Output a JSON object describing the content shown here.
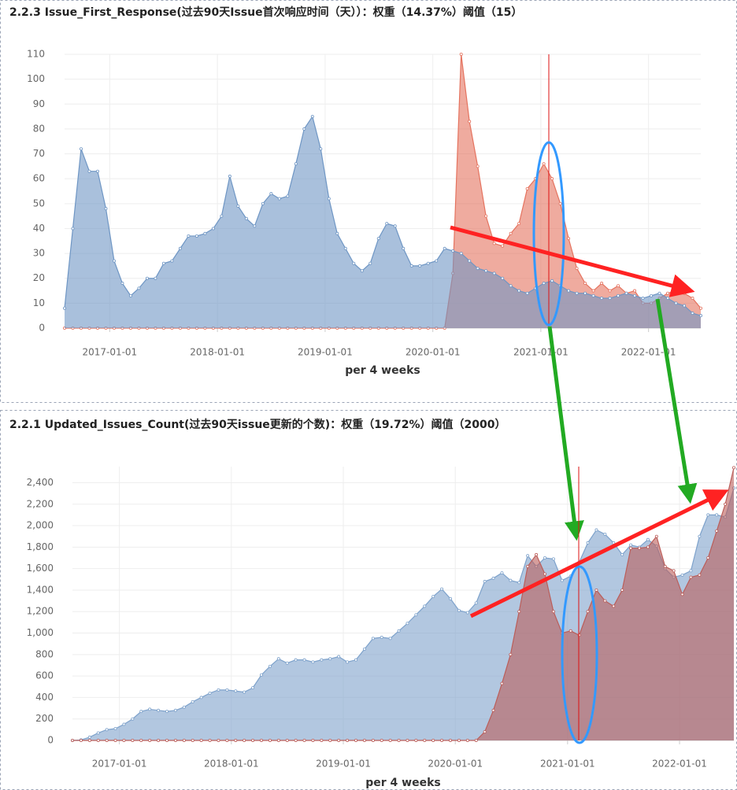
{
  "chart_data": [
    {
      "type": "area",
      "title": "2.2.3 Issue_First_Response(过去90天Issue首次响应时间（天））：权重（14.37%）阈值（15）",
      "x_label": "per 4 weeks",
      "x": [
        "2016-08-01",
        "2016-08-29",
        "2016-09-26",
        "2016-10-24",
        "2016-11-21",
        "2016-12-19",
        "2017-01-16",
        "2017-02-13",
        "2017-03-13",
        "2017-04-10",
        "2017-05-08",
        "2017-06-05",
        "2017-07-03",
        "2017-07-31",
        "2017-08-28",
        "2017-09-25",
        "2017-10-23",
        "2017-11-20",
        "2017-12-18",
        "2018-01-15",
        "2018-02-12",
        "2018-03-12",
        "2018-04-09",
        "2018-05-07",
        "2018-06-04",
        "2018-07-02",
        "2018-07-30",
        "2018-08-27",
        "2018-09-24",
        "2018-10-22",
        "2018-11-19",
        "2018-12-17",
        "2019-01-14",
        "2019-02-11",
        "2019-03-11",
        "2019-04-08",
        "2019-05-06",
        "2019-06-03",
        "2019-07-01",
        "2019-07-29",
        "2019-08-26",
        "2019-09-23",
        "2019-10-21",
        "2019-11-18",
        "2019-12-16",
        "2020-01-13",
        "2020-02-10",
        "2020-03-09",
        "2020-04-06",
        "2020-05-04",
        "2020-06-01",
        "2020-06-29",
        "2020-07-27",
        "2020-08-24",
        "2020-09-21",
        "2020-10-19",
        "2020-11-16",
        "2020-12-14",
        "2021-01-11",
        "2021-02-08",
        "2021-03-08",
        "2021-04-05",
        "2021-05-03",
        "2021-05-31",
        "2021-06-28",
        "2021-07-26",
        "2021-08-23",
        "2021-09-20",
        "2021-10-18",
        "2021-11-15",
        "2021-12-13",
        "2022-01-10",
        "2022-02-07",
        "2022-03-07",
        "2022-04-04",
        "2022-05-02",
        "2022-05-30",
        "2022-06-27"
      ],
      "xlim": [
        "2016-08-01",
        "2022-06-27"
      ],
      "xticks": [
        "2017-01-01",
        "2018-01-01",
        "2019-01-01",
        "2020-01-01",
        "2021-01-01",
        "2022-01-01"
      ],
      "ylim": [
        0,
        110
      ],
      "yticks": [
        0,
        10,
        20,
        30,
        40,
        50,
        60,
        70,
        80,
        90,
        100,
        110
      ],
      "grid": true,
      "series": [
        {
          "color": "#e5735f",
          "values": [
            0,
            0,
            0,
            0,
            0,
            0,
            0,
            0,
            0,
            0,
            0,
            0,
            0,
            0,
            0,
            0,
            0,
            0,
            0,
            0,
            0,
            0,
            0,
            0,
            0,
            0,
            0,
            0,
            0,
            0,
            0,
            0,
            0,
            0,
            0,
            0,
            0,
            0,
            0,
            0,
            0,
            0,
            0,
            0,
            0,
            0,
            0,
            22,
            110,
            83,
            65,
            45,
            34,
            33,
            38,
            42,
            56,
            60,
            66,
            60,
            50,
            36,
            24,
            18,
            15,
            18,
            15,
            17,
            14,
            15,
            10,
            10,
            12,
            14,
            15,
            14,
            12,
            8
          ]
        },
        {
          "color": "#6f96c4",
          "values": [
            8,
            40,
            72,
            63,
            63,
            48,
            27,
            18,
            13,
            16,
            20,
            20,
            26,
            27,
            32,
            37,
            37,
            38,
            40,
            45,
            61,
            49,
            44,
            41,
            50,
            54,
            52,
            53,
            66,
            80,
            85,
            72,
            52,
            38,
            32,
            26,
            23,
            26,
            36,
            42,
            41,
            32,
            25,
            25,
            26,
            27,
            32,
            31,
            30,
            27,
            24,
            23,
            22,
            20,
            17,
            15,
            14,
            16,
            18,
            19,
            17,
            15,
            14,
            14,
            13,
            12,
            12,
            13,
            14,
            13,
            12,
            13,
            14,
            12,
            10,
            9,
            6,
            5
          ]
        }
      ]
    },
    {
      "type": "area",
      "title": "2.2.1 Updated_Issues_Count(过去90天issue更新的个数)：权重（19.72%）阈值（2000）",
      "x_label": "per 4 weeks",
      "x": [
        "2016-08-01",
        "2016-08-29",
        "2016-09-26",
        "2016-10-24",
        "2016-11-21",
        "2016-12-19",
        "2017-01-16",
        "2017-02-13",
        "2017-03-13",
        "2017-04-10",
        "2017-05-08",
        "2017-06-05",
        "2017-07-03",
        "2017-07-31",
        "2017-08-28",
        "2017-09-25",
        "2017-10-23",
        "2017-11-20",
        "2017-12-18",
        "2018-01-15",
        "2018-02-12",
        "2018-03-12",
        "2018-04-09",
        "2018-05-07",
        "2018-06-04",
        "2018-07-02",
        "2018-07-30",
        "2018-08-27",
        "2018-09-24",
        "2018-10-22",
        "2018-11-19",
        "2018-12-17",
        "2019-01-14",
        "2019-02-11",
        "2019-03-11",
        "2019-04-08",
        "2019-05-06",
        "2019-06-03",
        "2019-07-01",
        "2019-07-29",
        "2019-08-26",
        "2019-09-23",
        "2019-10-21",
        "2019-11-18",
        "2019-12-16",
        "2020-01-13",
        "2020-02-10",
        "2020-03-09",
        "2020-04-06",
        "2020-05-04",
        "2020-06-01",
        "2020-06-29",
        "2020-07-27",
        "2020-08-24",
        "2020-09-21",
        "2020-10-19",
        "2020-11-16",
        "2020-12-14",
        "2021-01-11",
        "2021-02-08",
        "2021-03-08",
        "2021-04-05",
        "2021-05-03",
        "2021-05-31",
        "2021-06-28",
        "2021-07-26",
        "2021-08-23",
        "2021-09-20",
        "2021-10-18",
        "2021-11-15",
        "2021-12-13",
        "2022-01-10",
        "2022-02-07",
        "2022-03-07",
        "2022-04-04",
        "2022-05-02",
        "2022-05-30",
        "2022-06-27"
      ],
      "xlim": [
        "2016-08-01",
        "2022-06-27"
      ],
      "xticks": [
        "2017-01-01",
        "2018-01-01",
        "2019-01-01",
        "2020-01-01",
        "2021-01-01",
        "2022-01-01"
      ],
      "ylim": [
        0,
        2550
      ],
      "yticks": [
        0,
        200,
        400,
        600,
        800,
        {
          "value": 1000,
          "label": "1,000"
        },
        {
          "value": 1200,
          "label": "1,200"
        },
        {
          "value": 1400,
          "label": "1,400"
        },
        {
          "value": 1600,
          "label": "1,600"
        },
        {
          "value": 1800,
          "label": "1,800"
        },
        {
          "value": 2000,
          "label": "2,000"
        },
        {
          "value": 2200,
          "label": "2,200"
        },
        {
          "value": 2400,
          "label": "2,400"
        }
      ],
      "grid": true,
      "series": [
        {
          "color": "#7ea2cb",
          "values": [
            0,
            5,
            30,
            70,
            100,
            110,
            150,
            200,
            270,
            290,
            280,
            270,
            280,
            310,
            360,
            400,
            440,
            470,
            470,
            460,
            450,
            490,
            610,
            690,
            760,
            720,
            750,
            750,
            730,
            750,
            760,
            780,
            730,
            750,
            850,
            950,
            960,
            950,
            1020,
            1090,
            1170,
            1250,
            1340,
            1410,
            1320,
            1210,
            1190,
            1280,
            1480,
            1510,
            1560,
            1490,
            1470,
            1720,
            1620,
            1700,
            1690,
            1490,
            1530,
            1660,
            1840,
            1960,
            1920,
            1840,
            1730,
            1820,
            1800,
            1870,
            1810,
            1600,
            1520,
            1540,
            1580,
            1900,
            2100,
            2100,
            2080,
            2350
          ]
        },
        {
          "color": "#bb5e5a",
          "values": [
            0,
            0,
            0,
            0,
            0,
            0,
            0,
            0,
            0,
            0,
            0,
            0,
            0,
            0,
            0,
            0,
            0,
            0,
            0,
            0,
            0,
            0,
            0,
            0,
            0,
            0,
            0,
            0,
            0,
            0,
            0,
            0,
            0,
            0,
            0,
            0,
            0,
            0,
            0,
            0,
            0,
            0,
            0,
            0,
            0,
            0,
            0,
            0,
            80,
            280,
            530,
            800,
            1200,
            1620,
            1730,
            1550,
            1200,
            1000,
            1020,
            980,
            1200,
            1400,
            1300,
            1250,
            1400,
            1790,
            1790,
            1800,
            1900,
            1620,
            1580,
            1360,
            1520,
            1540,
            1700,
            1950,
            2200,
            2540
          ]
        }
      ]
    }
  ]
}
